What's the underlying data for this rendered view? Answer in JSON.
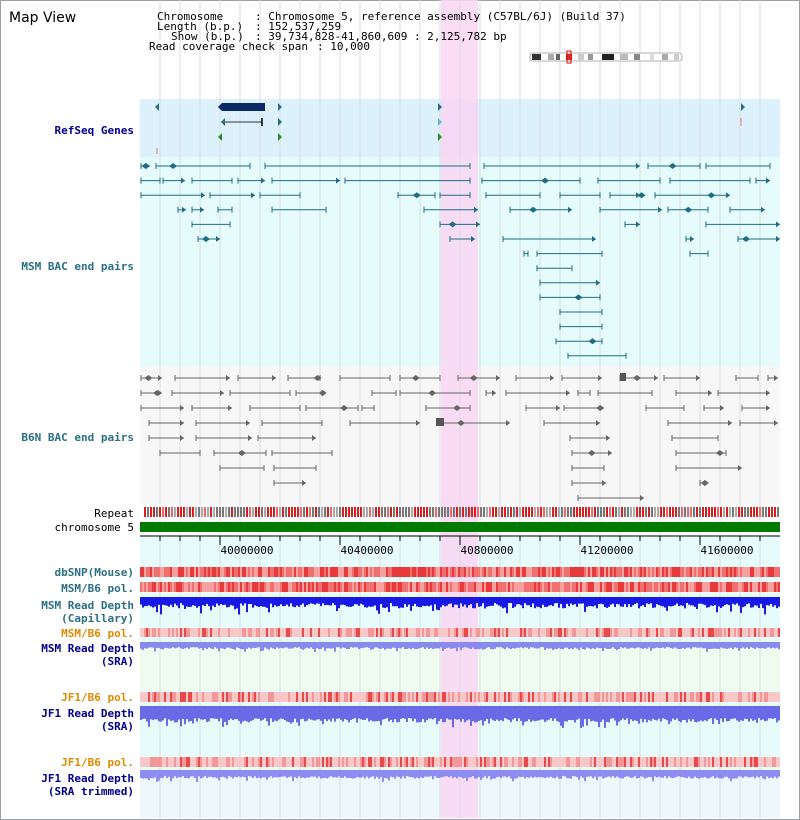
{
  "title": "Map View",
  "info": {
    "chromosome_key": "Chromosome",
    "chromosome_val": ": Chromosome 5, reference assembly (C57BL/6J) (Build 37)",
    "length_key": "Length (b.p.)",
    "length_val": ": 152,537,259",
    "show_key": "Show (b.p.)",
    "show_val": ": 39,734,828-41,860,609 : 2,125,782 bp",
    "span_key": "Read coverage check span",
    "span_val": ": 10,000"
  },
  "tracks": {
    "refseq": "RefSeq Genes",
    "msm_bac": "MSM BAC end pairs",
    "b6n_bac": "B6N BAC end pairs",
    "repeat": "Repeat",
    "chromosome": "chromosome 5",
    "dbsnp": "dbSNP(Mouse)",
    "msm_pol": "MSM/B6 pol.",
    "msm_depth_cap": "MSM Read Depth",
    "msm_depth_cap_sub": "(Capillary)",
    "msm_pol_2": "MSM/B6 pol.",
    "msm_depth_sra": "MSM Read Depth",
    "msm_depth_sra_sub": "(SRA)",
    "jf1_pol": "JF1/B6 pol.",
    "jf1_depth_sra": "JF1 Read Depth",
    "jf1_depth_sra_sub": "(SRA)",
    "jf1_pol_2": "JF1/B6 pol.",
    "jf1_depth_trim": "JF1 Read Depth",
    "jf1_depth_trim_sub": "(SRA trimmed)"
  },
  "axis_ticks": [
    "40000000",
    "40400000",
    "40800000",
    "41200000",
    "41600000"
  ],
  "colors": {
    "refseq_bg": "#dcf1fb",
    "msm_bg": "#e6fbfb",
    "b6n_bg": "#f7f7f7",
    "highlight": "#f9d6f3",
    "chromosome_bar": "#007a00",
    "msm_feature": "#1f6d84",
    "b6n_feature": "#666666",
    "depth_blue": "#1919e6",
    "label_blue": "#00008b",
    "label_teal": "#2a6f83",
    "label_orange": "#e08a00"
  }
}
